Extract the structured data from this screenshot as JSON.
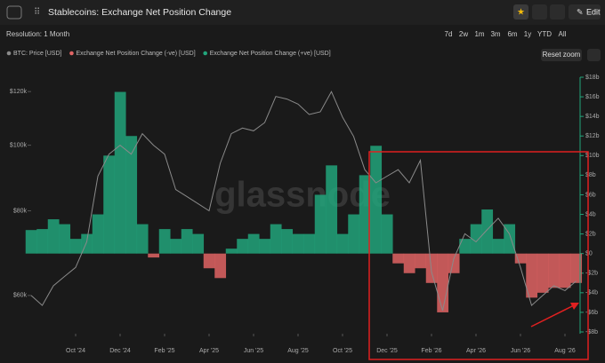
{
  "header": {
    "title": "Stablecoins: Exchange Net Position Change",
    "edit": "Edit"
  },
  "toolbar": {
    "resolution": "Resolution: 1 Month",
    "ranges": [
      "7d",
      "2w",
      "1m",
      "3m",
      "6m",
      "1y",
      "YTD",
      "All"
    ],
    "reset": "Reset zoom"
  },
  "watermark": "glassnode",
  "chart_data": {
    "type": "bar",
    "log_y": true,
    "categories": [
      null,
      null,
      null,
      null,
      "Oct '24",
      null,
      null,
      null,
      "Dec '24",
      null,
      null,
      null,
      "Feb '25",
      null,
      null,
      null,
      "Apr '25",
      null,
      null,
      null,
      "Jun '25",
      null,
      null,
      null,
      "Aug '25",
      null,
      null,
      null,
      "Oct '25",
      null,
      null,
      null,
      "Dec '25",
      null,
      null,
      null,
      "Feb '26",
      null,
      null,
      null,
      "Apr '26",
      null,
      null,
      null,
      "Jun '26",
      null,
      null,
      null,
      "Aug '26",
      null
    ],
    "series": [
      {
        "name": "BTC: Price [USD]",
        "type": "line",
        "axis": "y",
        "color": "#8a8a8a",
        "values": [
          60000,
          58000,
          62000,
          64000,
          66000,
          72000,
          90000,
          97000,
          100000,
          97000,
          104000,
          100000,
          97000,
          86000,
          84000,
          82000,
          80000,
          94000,
          104000,
          106000,
          105000,
          108000,
          118000,
          117000,
          115000,
          111000,
          112000,
          120000,
          110000,
          103000,
          92000,
          88000,
          90000,
          92000,
          88000,
          95000,
          65000,
          57000,
          68000,
          74000,
          72000,
          75000,
          78000,
          74000,
          66000,
          58000,
          60000,
          62000,
          61000,
          63000
        ]
      },
      {
        "name": "Exchange Net Position Change (-ve) [USD]",
        "type": "bar",
        "axis": "y2",
        "color": "#e06464",
        "values": [
          null,
          null,
          null,
          null,
          null,
          null,
          null,
          null,
          null,
          null,
          null,
          -0.4,
          null,
          null,
          null,
          null,
          -1.5,
          -2.5,
          null,
          null,
          null,
          null,
          null,
          null,
          null,
          null,
          null,
          null,
          null,
          null,
          null,
          null,
          null,
          -1,
          -2,
          -1.5,
          -3,
          -6,
          -2,
          null,
          null,
          null,
          null,
          null,
          -1,
          -4.5,
          -4,
          -3.5,
          -3.5,
          -3
        ]
      },
      {
        "name": "Exchange Net Position Change (+ve) [USD]",
        "type": "bar",
        "axis": "y2",
        "color": "#22a57b",
        "values": [
          2.4,
          2.5,
          3.5,
          3,
          1.5,
          2,
          4,
          10,
          16.5,
          12,
          3,
          null,
          2.5,
          1.5,
          2.5,
          2,
          null,
          null,
          0.5,
          1.5,
          2,
          1.5,
          3,
          2.5,
          2,
          2,
          6,
          9,
          2,
          4,
          8,
          11,
          4,
          null,
          null,
          null,
          null,
          null,
          null,
          1.5,
          3,
          4.5,
          1.5,
          3,
          null,
          null,
          null,
          null,
          null,
          null
        ]
      }
    ],
    "ylim": [
      53000,
      126000
    ],
    "yticks": [
      {
        "value": 60000,
        "label": "$60k"
      },
      {
        "value": 80000,
        "label": "$80k"
      },
      {
        "value": 100000,
        "label": "$100k"
      },
      {
        "value": 120000,
        "label": "$120k"
      }
    ],
    "y2lim": [
      -8,
      18
    ],
    "y2ticks": [
      {
        "value": -8,
        "label": "-$8b"
      },
      {
        "value": -6,
        "label": "-$6b"
      },
      {
        "value": -4,
        "label": "-$4b"
      },
      {
        "value": -2,
        "label": "-$2b"
      },
      {
        "value": 0,
        "label": "$0"
      },
      {
        "value": 2,
        "label": "$2b"
      },
      {
        "value": 4,
        "label": "$4b"
      },
      {
        "value": 6,
        "label": "$6b"
      },
      {
        "value": 8,
        "label": "$8b"
      },
      {
        "value": 10,
        "label": "$10b"
      },
      {
        "value": 12,
        "label": "$12b"
      },
      {
        "value": 14,
        "label": "$14b"
      },
      {
        "value": 16,
        "label": "$16b"
      },
      {
        "value": 18,
        "label": "$18b"
      }
    ]
  }
}
